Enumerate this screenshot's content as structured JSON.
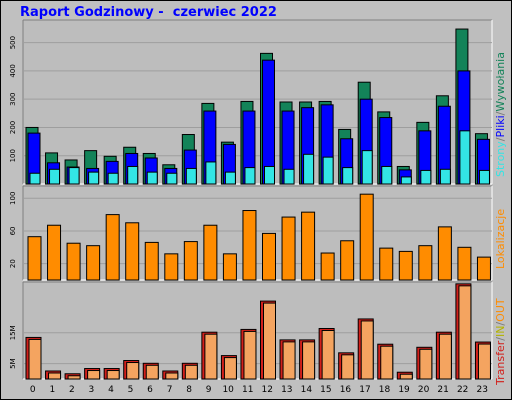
{
  "title": "Raport Godzinowy -  czerwiec 2022",
  "colors": {
    "background": "#c0c0c0",
    "plot_background": "#bdbdbd",
    "grid": "#9e9e9e",
    "hits": "#138359",
    "files": "#0000ff",
    "pages": "#33e5e5",
    "visits": "#ff8c00",
    "kbytes": "#d2201b",
    "transfer_inner": "#f4a460",
    "transfer_in": "#b3b300",
    "slash": "#7a7a7a"
  },
  "chart_data": [
    {
      "type": "bar",
      "title": "",
      "categories": [
        "0",
        "1",
        "2",
        "3",
        "4",
        "5",
        "6",
        "7",
        "8",
        "9",
        "10",
        "11",
        "12",
        "13",
        "14",
        "15",
        "16",
        "17",
        "18",
        "19",
        "20",
        "21",
        "22",
        "23"
      ],
      "series": [
        {
          "name": "Wywołania",
          "values": [
            200,
            110,
            85,
            118,
            98,
            130,
            108,
            68,
            175,
            285,
            148,
            292,
            462,
            290,
            290,
            292,
            193,
            360,
            255,
            62,
            218,
            312,
            548,
            178
          ]
        },
        {
          "name": "Pliki",
          "values": [
            180,
            75,
            60,
            55,
            80,
            108,
            92,
            55,
            120,
            258,
            140,
            258,
            438,
            258,
            270,
            280,
            160,
            300,
            235,
            50,
            188,
            275,
            400,
            158
          ]
        },
        {
          "name": "Strony",
          "values": [
            38,
            52,
            58,
            42,
            38,
            62,
            42,
            38,
            55,
            78,
            42,
            58,
            62,
            52,
            105,
            95,
            58,
            118,
            62,
            25,
            48,
            52,
            188,
            48
          ]
        }
      ],
      "yticks": [
        100,
        200,
        300,
        400,
        500
      ],
      "ylim": [
        0,
        580
      ],
      "legend": [
        "Strony",
        "Pliki",
        "Wywołania"
      ]
    },
    {
      "type": "bar",
      "title": "",
      "categories": [
        "0",
        "1",
        "2",
        "3",
        "4",
        "5",
        "6",
        "7",
        "8",
        "9",
        "10",
        "11",
        "12",
        "13",
        "14",
        "15",
        "16",
        "17",
        "18",
        "19",
        "20",
        "21",
        "22",
        "23"
      ],
      "series": [
        {
          "name": "Lokalizacje",
          "values": [
            53,
            67,
            45,
            42,
            80,
            70,
            46,
            32,
            47,
            67,
            32,
            85,
            57,
            77,
            83,
            33,
            48,
            105,
            39,
            35,
            42,
            65,
            40,
            28
          ]
        }
      ],
      "yticks": [
        20,
        60,
        100
      ],
      "ylim": [
        0,
        115
      ],
      "legend": [
        "Lokalizacje"
      ]
    },
    {
      "type": "bar",
      "title": "",
      "categories": [
        "0",
        "1",
        "2",
        "3",
        "4",
        "5",
        "6",
        "7",
        "8",
        "9",
        "10",
        "11",
        "12",
        "13",
        "14",
        "15",
        "16",
        "17",
        "18",
        "19",
        "20",
        "21",
        "22",
        "23"
      ],
      "series": [
        {
          "name": "Transfer",
          "values": [
            13.5,
            2.6,
            1.7,
            3.4,
            3.4,
            6.0,
            5.1,
            2.6,
            5.1,
            15.2,
            7.6,
            16.1,
            25.3,
            12.7,
            12.7,
            16.4,
            8.5,
            19.5,
            11.3,
            2.2,
            10.3,
            15.2,
            30.9,
            12.0
          ]
        }
      ],
      "yticks": [
        5,
        15
      ],
      "ytick_labels": [
        "5M",
        "15M"
      ],
      "ylim": [
        0,
        31.5
      ],
      "legend": [
        "Transfer",
        "IN",
        "OUT"
      ]
    }
  ]
}
